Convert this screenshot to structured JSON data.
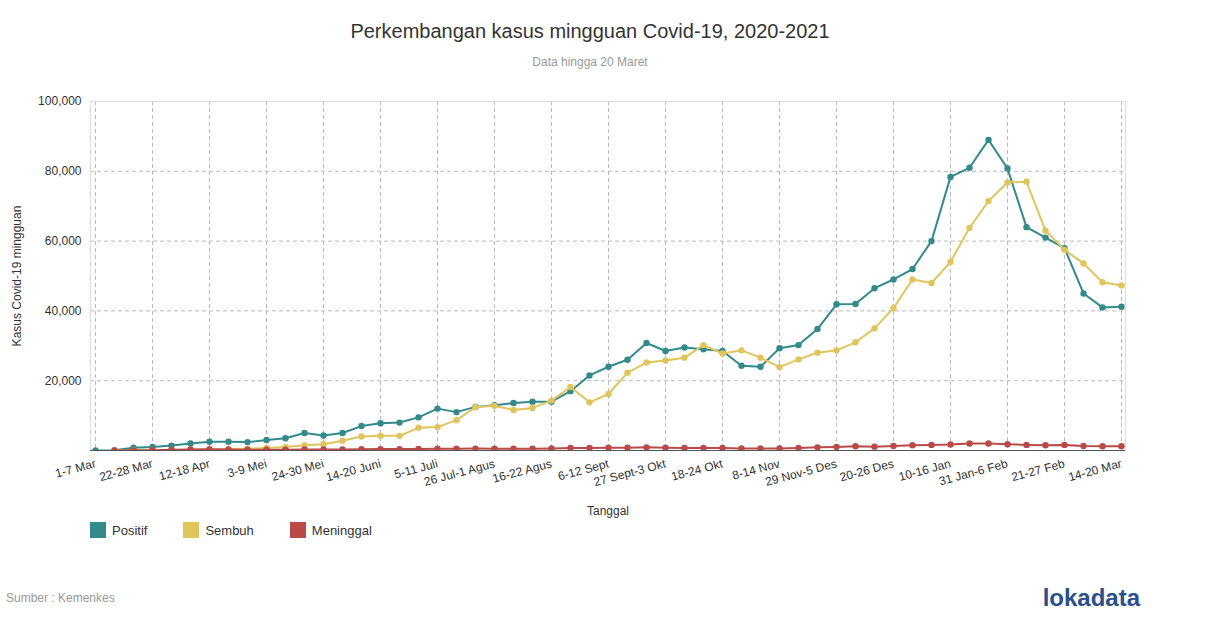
{
  "chart_data": {
    "type": "line",
    "title": "Perkembangan kasus mingguan Covid-19, 2020-2021",
    "subtitle": "Data hingga 20 Maret",
    "x_label": "Tanggal",
    "y_label": "Kasus Covid-19 mingguan",
    "source": "Sumber : Kemenkes",
    "logo": "lokadata",
    "categories": [
      "1-7 Mar",
      null,
      null,
      "22-28 Mar",
      null,
      null,
      "12-18 Apr",
      null,
      null,
      "3-9 Mei",
      null,
      null,
      "24-30 Mei",
      null,
      null,
      "14-20 Juni",
      null,
      null,
      "5-11 Juli",
      null,
      null,
      "26 Jul-1 Agus",
      null,
      null,
      "16-22 Agus",
      null,
      null,
      "6-12 Sept",
      null,
      null,
      "27 Sept-3 Okt",
      null,
      null,
      "18-24 Okt",
      null,
      null,
      "8-14 Nov",
      null,
      null,
      "29 Nov-5 Des",
      null,
      null,
      "20-26 Des",
      null,
      null,
      "10-16 Jan",
      null,
      null,
      "31 Jan-6 Feb",
      null,
      null,
      "21-27 Feb",
      null,
      null,
      "14-20 Mar"
    ],
    "series": [
      {
        "name": "Positif",
        "color": "#338a8a",
        "values": [
          2,
          100,
          800,
          1000,
          1400,
          2000,
          2500,
          2500,
          2400,
          3000,
          3500,
          5000,
          4300,
          5000,
          7000,
          7800,
          8000,
          9500,
          12000,
          11000,
          12500,
          13000,
          13600,
          14000,
          14000,
          17000,
          21500,
          24000,
          26000,
          30800,
          28500,
          29500,
          29000,
          28500,
          24300,
          24000,
          29300,
          30200,
          34800,
          41900,
          42000,
          46500,
          49000,
          52000,
          60000,
          78400,
          81000,
          89000,
          80800,
          64000,
          61000,
          58000,
          45000,
          41000,
          41200
        ]
      },
      {
        "name": "Sembuh",
        "color": "#e0c55c",
        "values": [
          null,
          0,
          10,
          50,
          100,
          200,
          300,
          400,
          500,
          700,
          1000,
          1500,
          1800,
          2800,
          4000,
          4200,
          4200,
          6500,
          6700,
          8700,
          12400,
          12800,
          11600,
          12200,
          14300,
          18200,
          13800,
          16200,
          22300,
          25200,
          25800,
          26600,
          30200,
          27800,
          28700,
          26600,
          23900,
          26100,
          28000,
          28700,
          31000,
          35000,
          40800,
          49000,
          48000,
          54000,
          63800,
          71500,
          76800,
          77000,
          63000,
          57500,
          53600,
          48200,
          47300
        ]
      },
      {
        "name": "Meninggal",
        "color": "#b94a48",
        "values": [
          null,
          5,
          50,
          100,
          200,
          300,
          350,
          300,
          250,
          200,
          250,
          300,
          300,
          300,
          350,
          400,
          400,
          450,
          500,
          500,
          550,
          500,
          500,
          500,
          600,
          700,
          700,
          800,
          800,
          900,
          800,
          700,
          700,
          700,
          600,
          600,
          600,
          700,
          900,
          1000,
          1200,
          1100,
          1300,
          1500,
          1600,
          1700,
          2000,
          2000,
          1800,
          1600,
          1500,
          1600,
          1300,
          1200,
          1200
        ]
      }
    ],
    "ylim": [
      0,
      100000
    ],
    "yticks": [
      {
        "value": 20000,
        "label": "20,000"
      },
      {
        "value": 40000,
        "label": "40,000"
      },
      {
        "value": 60000,
        "label": "60,000"
      },
      {
        "value": 80000,
        "label": "80,000"
      },
      {
        "value": 100000,
        "label": "100,000"
      }
    ],
    "grid": true,
    "marker": "circle",
    "legend": "bottom-left"
  }
}
